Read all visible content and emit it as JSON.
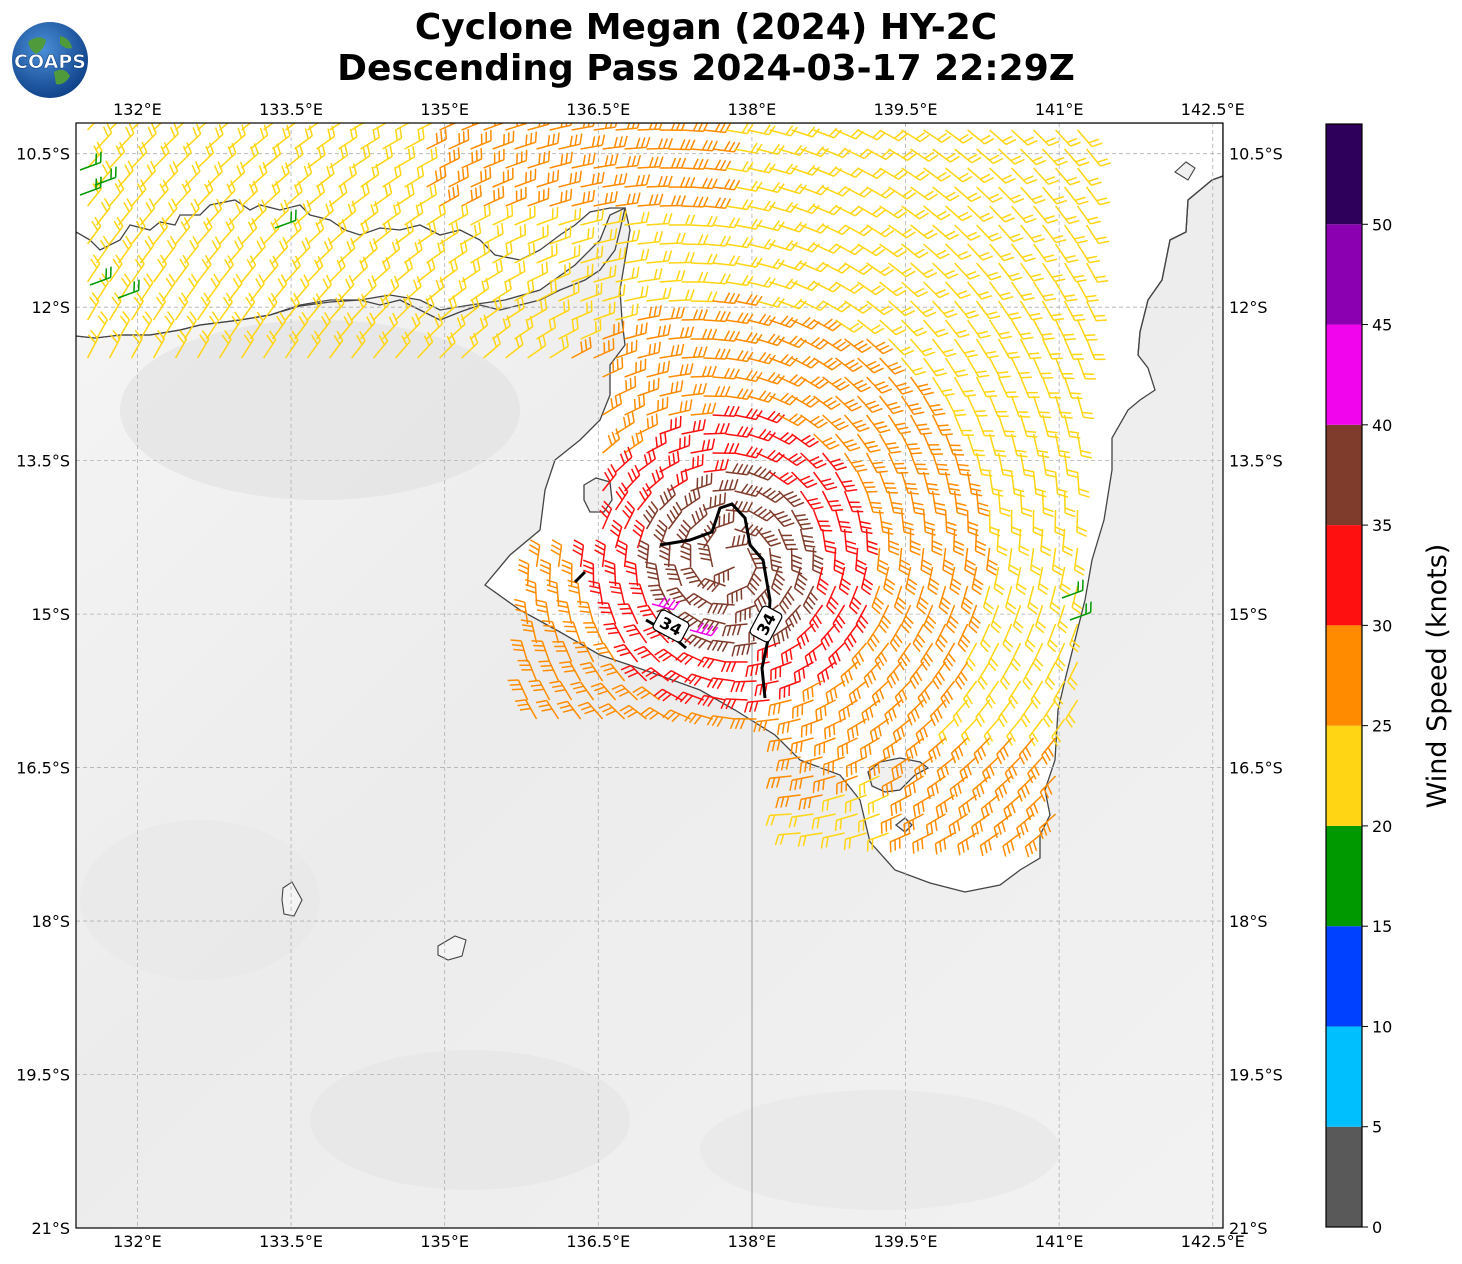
{
  "title": {
    "line1": "Cyclone Megan (2024) HY-2C",
    "line2": "Descending Pass 2024-03-17 22:29Z"
  },
  "logo": {
    "text": "COAPS"
  },
  "map": {
    "lon_ticks": [
      "132°E",
      "133.5°E",
      "135°E",
      "136.5°E",
      "138°E",
      "139.5°E",
      "141°E",
      "142.5°E"
    ],
    "lat_ticks": [
      "10.5°S",
      "12°S",
      "13.5°S",
      "15°S",
      "16.5°S",
      "18°S",
      "19.5°S",
      "21°S"
    ],
    "lon_values": [
      132,
      133.5,
      135,
      136.5,
      138,
      139.5,
      141,
      142.5
    ],
    "lat_values": [
      -10.5,
      -12,
      -13.5,
      -15,
      -16.5,
      -18,
      -19.5,
      -21
    ],
    "extent": {
      "lon": [
        131.4,
        142.6
      ],
      "lat": [
        -21.0,
        -10.2
      ]
    },
    "contour_labels": [
      "34",
      "34"
    ],
    "contour_value": 34,
    "coastline_color": "#444444",
    "gridline_color": "#b0b0b0"
  },
  "colorbar": {
    "label": "Wind Speed (knots)",
    "ticks": [
      "0",
      "5",
      "10",
      "15",
      "20",
      "25",
      "30",
      "35",
      "40",
      "45",
      "50"
    ],
    "bins": [
      {
        "min": 0,
        "max": 5,
        "color": "#595959"
      },
      {
        "min": 5,
        "max": 10,
        "color": "#00bfff"
      },
      {
        "min": 10,
        "max": 15,
        "color": "#0040ff"
      },
      {
        "min": 15,
        "max": 20,
        "color": "#009900"
      },
      {
        "min": 20,
        "max": 25,
        "color": "#ffd514"
      },
      {
        "min": 25,
        "max": 30,
        "color": "#ff8c00"
      },
      {
        "min": 30,
        "max": 35,
        "color": "#ff1010"
      },
      {
        "min": 35,
        "max": 40,
        "color": "#7f3b2b"
      },
      {
        "min": 40,
        "max": 45,
        "color": "#f005ec"
      },
      {
        "min": 45,
        "max": 50,
        "color": "#8b00b0"
      },
      {
        "min": 50,
        "max": 55,
        "color": "#2e005c"
      }
    ]
  }
}
